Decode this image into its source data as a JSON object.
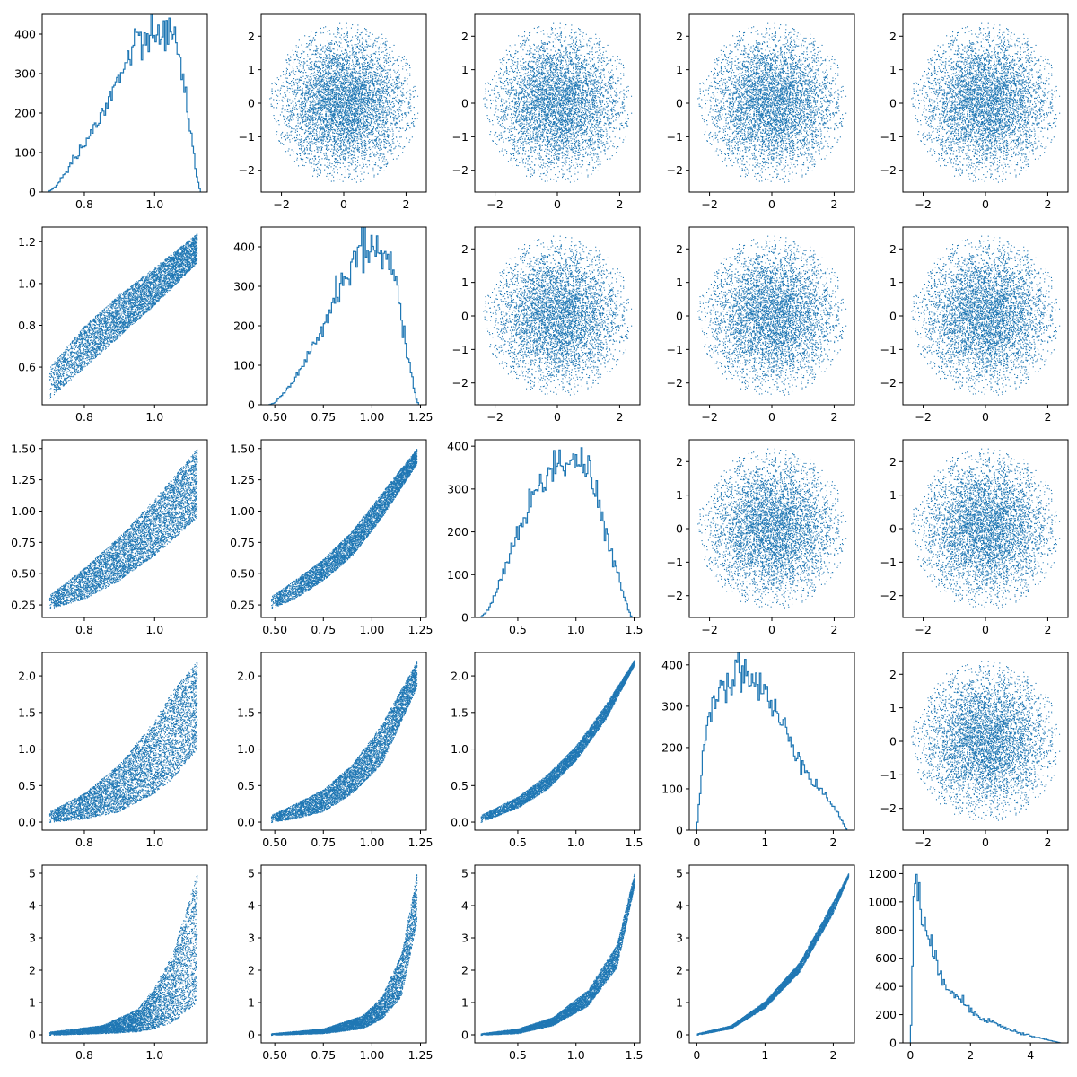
{
  "colors": {
    "series": "#1f77b4",
    "axes": "#000000",
    "background": "#ffffff"
  },
  "chart_data": {
    "type": "pairplot",
    "grid": {
      "rows": 5,
      "cols": 5,
      "gridlines": false
    },
    "variables": [
      {
        "index": 0,
        "range": [
          0.68,
          1.15
        ],
        "ticks": [
          0.8,
          1.0
        ],
        "tick_labels": [
          "0.8",
          "1.0"
        ]
      },
      {
        "index": 1,
        "range": [
          0.43,
          1.28
        ],
        "ticks": [
          0.5,
          0.75,
          1.0,
          1.25
        ],
        "tick_labels": [
          "0.50",
          "0.75",
          "1.00",
          "1.25"
        ]
      },
      {
        "index": 2,
        "range": [
          0.13,
          1.55
        ],
        "ticks": [
          0.5,
          1.0,
          1.5
        ],
        "tick_labels": [
          "0.5",
          "1.0",
          "1.5"
        ]
      },
      {
        "index": 3,
        "range": [
          -0.11,
          2.31
        ],
        "ticks": [
          0,
          1,
          2
        ],
        "tick_labels": [
          "0",
          "1",
          "2"
        ]
      },
      {
        "index": 4,
        "range": [
          -0.25,
          5.25
        ],
        "ticks": [
          0,
          2,
          4
        ],
        "tick_labels": [
          "0",
          "2",
          "4"
        ]
      }
    ],
    "upper_variables": {
      "range": [
        -2.65,
        2.65
      ],
      "ticks": [
        -2,
        0,
        2
      ],
      "tick_labels": [
        "−2",
        "0",
        "2"
      ],
      "yticks": [
        -2,
        -1,
        0,
        1,
        2
      ],
      "ytick_labels": [
        "−2",
        "−1",
        "0",
        "1",
        "2"
      ]
    },
    "diagonal_histograms": [
      {
        "position": [
          0,
          0
        ],
        "type": "histogram-step",
        "xrange": [
          0.68,
          1.15
        ],
        "yrange": [
          0,
          450
        ],
        "yticks": [
          0,
          100,
          200,
          300,
          400
        ],
        "ytick_labels": [
          "0",
          "100",
          "200",
          "300",
          "400"
        ],
        "x": [
          0.7,
          0.72,
          0.74,
          0.76,
          0.78,
          0.8,
          0.82,
          0.84,
          0.86,
          0.88,
          0.9,
          0.92,
          0.94,
          0.96,
          0.98,
          1.0,
          1.02,
          1.04,
          1.06,
          1.08,
          1.1,
          1.12,
          1.13
        ],
        "y": [
          2,
          15,
          40,
          70,
          100,
          120,
          150,
          180,
          210,
          250,
          290,
          330,
          360,
          380,
          385,
          390,
          420,
          400,
          370,
          300,
          170,
          40,
          0
        ]
      },
      {
        "position": [
          1,
          1
        ],
        "type": "histogram-step",
        "xrange": [
          0.43,
          1.28
        ],
        "yrange": [
          0,
          450
        ],
        "yticks": [
          0,
          100,
          200,
          300,
          400
        ],
        "ytick_labels": [
          "0",
          "100",
          "200",
          "300",
          "400"
        ],
        "x": [
          0.47,
          0.5,
          0.55,
          0.6,
          0.65,
          0.7,
          0.75,
          0.8,
          0.85,
          0.9,
          0.95,
          1.0,
          1.05,
          1.08,
          1.1,
          1.13,
          1.16,
          1.19,
          1.22,
          1.24
        ],
        "y": [
          0,
          5,
          30,
          60,
          100,
          150,
          200,
          260,
          320,
          360,
          390,
          400,
          390,
          380,
          350,
          290,
          200,
          110,
          30,
          0
        ]
      },
      {
        "position": [
          2,
          2
        ],
        "type": "histogram-step",
        "xrange": [
          0.13,
          1.55
        ],
        "yrange": [
          0,
          415
        ],
        "yticks": [
          0,
          100,
          200,
          300,
          400
        ],
        "ytick_labels": [
          "0",
          "100",
          "200",
          "300",
          "400"
        ],
        "x": [
          0.18,
          0.25,
          0.3,
          0.35,
          0.4,
          0.45,
          0.5,
          0.6,
          0.7,
          0.8,
          0.9,
          1.0,
          1.1,
          1.15,
          1.2,
          1.25,
          1.3,
          1.35,
          1.4,
          1.45,
          1.48
        ],
        "y": [
          0,
          20,
          50,
          90,
          120,
          160,
          200,
          260,
          320,
          350,
          365,
          370,
          350,
          300,
          260,
          200,
          150,
          110,
          60,
          20,
          0
        ]
      },
      {
        "position": [
          3,
          3
        ],
        "type": "histogram-step",
        "xrange": [
          -0.11,
          2.31
        ],
        "yrange": [
          0,
          430
        ],
        "yticks": [
          0,
          100,
          200,
          300,
          400
        ],
        "ytick_labels": [
          "0",
          "100",
          "200",
          "300",
          "400"
        ],
        "x": [
          0.0,
          0.05,
          0.1,
          0.15,
          0.2,
          0.3,
          0.4,
          0.5,
          0.6,
          0.7,
          0.8,
          0.9,
          1.0,
          1.1,
          1.2,
          1.3,
          1.4,
          1.5,
          1.6,
          1.7,
          1.8,
          1.9,
          2.0,
          2.1,
          2.2
        ],
        "y": [
          0,
          100,
          200,
          260,
          300,
          330,
          350,
          370,
          390,
          390,
          370,
          350,
          330,
          300,
          270,
          240,
          210,
          180,
          150,
          120,
          100,
          80,
          60,
          30,
          0
        ]
      },
      {
        "position": [
          4,
          4
        ],
        "type": "histogram-step",
        "xrange": [
          -0.25,
          5.25
        ],
        "yrange": [
          0,
          1260
        ],
        "yticks": [
          0,
          200,
          400,
          600,
          800,
          1000,
          1200
        ],
        "ytick_labels": [
          "0",
          "200",
          "400",
          "600",
          "800",
          "1000",
          "1200"
        ],
        "x": [
          0.0,
          0.05,
          0.1,
          0.15,
          0.2,
          0.25,
          0.3,
          0.4,
          0.5,
          0.6,
          0.8,
          1.0,
          1.2,
          1.5,
          1.8,
          2.0,
          2.5,
          3.0,
          3.5,
          4.0,
          4.5,
          4.8,
          5.0
        ],
        "y": [
          0,
          300,
          1000,
          1200,
          1190,
          1100,
          1000,
          900,
          800,
          700,
          600,
          500,
          420,
          350,
          280,
          230,
          170,
          120,
          80,
          50,
          25,
          10,
          0
        ]
      }
    ],
    "upper_scatter": {
      "type": "scatter",
      "description_of_relation": "independent standard normal, clipped to radius 2.4",
      "panels": [
        [
          0,
          1
        ],
        [
          0,
          2
        ],
        [
          0,
          3
        ],
        [
          0,
          4
        ],
        [
          1,
          2
        ],
        [
          1,
          3
        ],
        [
          1,
          4
        ],
        [
          2,
          3
        ],
        [
          2,
          4
        ],
        [
          3,
          4
        ]
      ]
    },
    "lower_scatter": {
      "type": "scatter",
      "panels": [
        {
          "position": [
            1,
            0
          ],
          "bands": {
            "x": [
              0.7,
              0.8,
              0.9,
              1.0,
              1.12
            ],
            "ylow": [
              0.45,
              0.6,
              0.75,
              0.9,
              1.1
            ],
            "yhigh": [
              0.6,
              0.8,
              0.95,
              1.08,
              1.24
            ]
          }
        },
        {
          "position": [
            2,
            0
          ],
          "bands": {
            "x": [
              0.7,
              0.8,
              0.9,
              1.0,
              1.12
            ],
            "ylow": [
              0.22,
              0.3,
              0.45,
              0.65,
              0.95
            ],
            "yhigh": [
              0.33,
              0.55,
              0.8,
              1.1,
              1.5
            ]
          }
        },
        {
          "position": [
            2,
            1
          ],
          "bands": {
            "x": [
              0.48,
              0.6,
              0.75,
              0.9,
              1.05,
              1.23
            ],
            "ylow": [
              0.22,
              0.3,
              0.45,
              0.65,
              0.95,
              1.38
            ],
            "yhigh": [
              0.32,
              0.45,
              0.62,
              0.85,
              1.15,
              1.5
            ]
          }
        },
        {
          "position": [
            3,
            0
          ],
          "bands": {
            "x": [
              0.7,
              0.8,
              0.9,
              1.0,
              1.05,
              1.12
            ],
            "ylow": [
              0.0,
              0.05,
              0.15,
              0.4,
              0.6,
              1.0
            ],
            "yhigh": [
              0.15,
              0.4,
              0.8,
              1.4,
              1.8,
              2.2
            ]
          }
        },
        {
          "position": [
            3,
            1
          ],
          "bands": {
            "x": [
              0.48,
              0.6,
              0.75,
              0.9,
              1.05,
              1.23
            ],
            "ylow": [
              0.0,
              0.05,
              0.15,
              0.4,
              0.8,
              1.85
            ],
            "yhigh": [
              0.1,
              0.25,
              0.45,
              0.8,
              1.35,
              2.2
            ]
          }
        },
        {
          "position": [
            3,
            2
          ],
          "bands": {
            "x": [
              0.18,
              0.5,
              0.75,
              1.0,
              1.25,
              1.5
            ],
            "ylow": [
              0.0,
              0.2,
              0.45,
              0.85,
              1.4,
              2.15
            ],
            "yhigh": [
              0.1,
              0.35,
              0.65,
              1.05,
              1.6,
              2.22
            ]
          }
        },
        {
          "position": [
            4,
            0
          ],
          "bands": {
            "x": [
              0.7,
              0.85,
              0.95,
              1.0,
              1.05,
              1.12
            ],
            "ylow": [
              0.0,
              0.05,
              0.1,
              0.2,
              0.4,
              1.0
            ],
            "yhigh": [
              0.1,
              0.3,
              0.8,
              1.5,
              2.5,
              5.0
            ]
          }
        },
        {
          "position": [
            4,
            1
          ],
          "bands": {
            "x": [
              0.48,
              0.75,
              0.95,
              1.05,
              1.15,
              1.23
            ],
            "ylow": [
              0.0,
              0.05,
              0.2,
              0.5,
              1.2,
              3.5
            ],
            "yhigh": [
              0.05,
              0.2,
              0.6,
              1.2,
              2.5,
              5.0
            ]
          }
        },
        {
          "position": [
            4,
            2
          ],
          "bands": {
            "x": [
              0.18,
              0.5,
              0.8,
              1.1,
              1.35,
              1.5
            ],
            "ylow": [
              0.0,
              0.05,
              0.3,
              0.9,
              2.1,
              4.6
            ],
            "yhigh": [
              0.05,
              0.2,
              0.55,
              1.4,
              2.8,
              5.0
            ]
          }
        },
        {
          "position": [
            4,
            3
          ],
          "bands": {
            "x": [
              0.0,
              0.5,
              1.0,
              1.5,
              2.0,
              2.22
            ],
            "ylow": [
              0.0,
              0.2,
              0.85,
              1.95,
              3.8,
              4.9
            ],
            "yhigh": [
              0.05,
              0.3,
              1.05,
              2.25,
              4.15,
              5.0
            ]
          }
        }
      ],
      "ytick_sets": {
        "0": {
          "ticks": [
            0.6,
            0.8,
            1.0,
            1.2
          ],
          "labels": [
            "0.6",
            "0.8",
            "1.0",
            "1.2"
          ],
          "range": [
            0.42,
            1.27
          ]
        },
        "1": {
          "ticks": [
            0.25,
            0.5,
            0.75,
            1.0,
            1.25,
            1.5
          ],
          "labels": [
            "0.25",
            "0.50",
            "0.75",
            "1.00",
            "1.25",
            "1.50"
          ],
          "range": [
            0.15,
            1.57
          ]
        },
        "2": {
          "ticks": [
            0.0,
            0.5,
            1.0,
            1.5,
            2.0
          ],
          "labels": [
            "0.0",
            "0.5",
            "1.0",
            "1.5",
            "2.0"
          ],
          "range": [
            -0.11,
            2.32
          ]
        },
        "3": {
          "ticks": [
            0,
            1,
            2,
            3,
            4,
            5
          ],
          "labels": [
            "0",
            "1",
            "2",
            "3",
            "4",
            "5"
          ],
          "range": [
            -0.25,
            5.25
          ]
        }
      }
    }
  }
}
